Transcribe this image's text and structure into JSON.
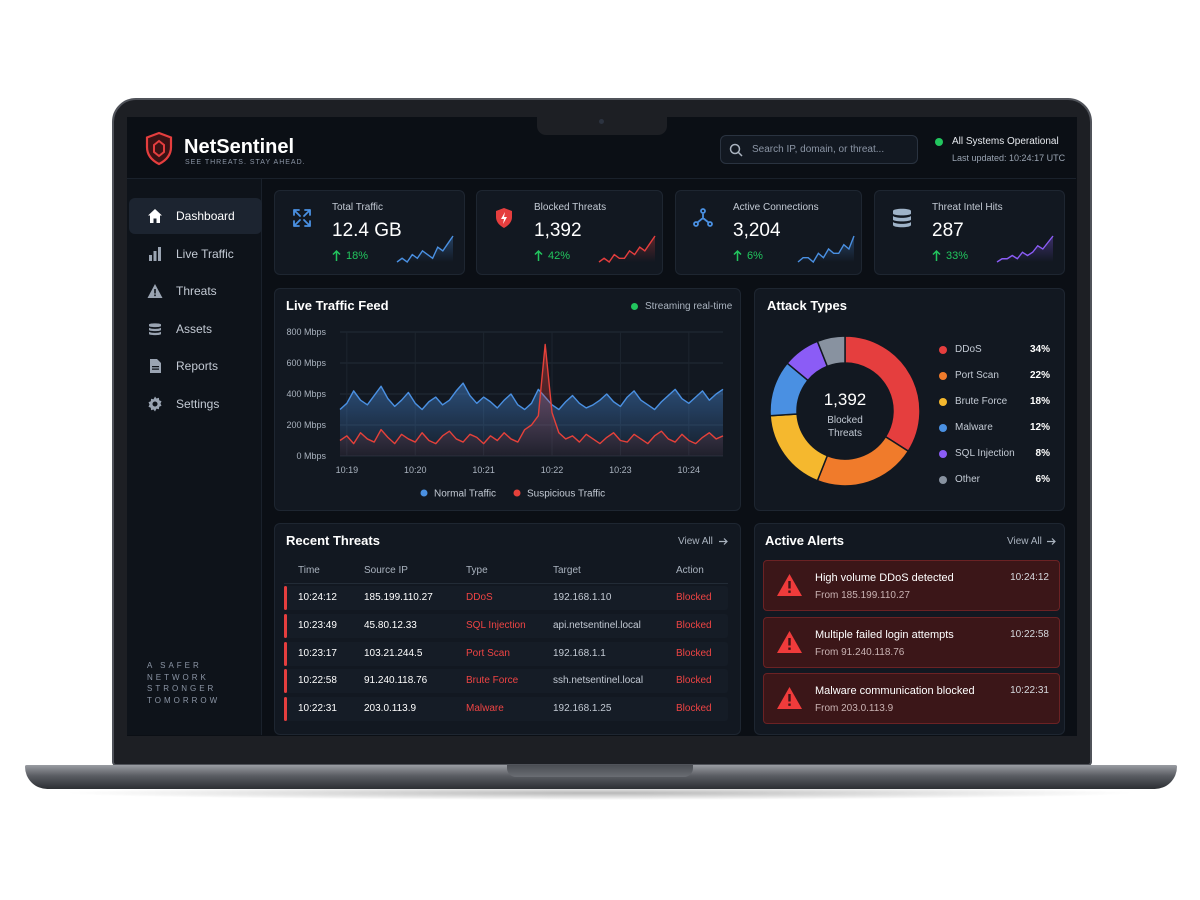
{
  "brand": {
    "name": "NetSentinel",
    "tagline": "SEE THREATS. STAY AHEAD."
  },
  "search_placeholder": "Search IP, domain, or threat...",
  "status": {
    "text": "All Systems Operational",
    "updated": "Last updated: 10:24:17 UTC"
  },
  "nav": [
    "Dashboard",
    "Live Traffic",
    "Threats",
    "Assets",
    "Reports",
    "Settings"
  ],
  "sidebar_footer": [
    "A SAFER",
    "NETWORK",
    "STRONGER",
    "TOMORROW"
  ],
  "kpis": [
    {
      "label": "Total Traffic",
      "value": "12.4 GB",
      "change": "18%",
      "color": "#4a90e2",
      "trend": [
        4,
        5,
        4,
        6,
        5,
        7,
        6,
        5,
        8,
        7,
        9,
        11
      ]
    },
    {
      "label": "Blocked Threats",
      "value": "1,392",
      "change": "42%",
      "color": "#e53e3e",
      "trend": [
        3,
        4,
        3,
        5,
        4,
        4,
        6,
        5,
        7,
        6,
        8,
        10
      ]
    },
    {
      "label": "Active Connections",
      "value": "3,204",
      "change": "6%",
      "color": "#4a90e2",
      "trend": [
        4,
        5,
        5,
        4,
        6,
        5,
        7,
        6,
        6,
        8,
        7,
        10
      ]
    },
    {
      "label": "Threat Intel Hits",
      "value": "287",
      "change": "33%",
      "color": "#8b5cf6",
      "trend": [
        3,
        4,
        4,
        5,
        4,
        6,
        5,
        6,
        8,
        7,
        9,
        11
      ]
    }
  ],
  "chart_data": [
    {
      "type": "line",
      "title": "Live Traffic Feed",
      "annotation": "Streaming real-time",
      "categories": [
        null,
        "10:19",
        null,
        null,
        null,
        null,
        null,
        null,
        null,
        null,
        null,
        "10:20",
        null,
        null,
        null,
        null,
        null,
        null,
        null,
        null,
        null,
        "10:21",
        null,
        null,
        null,
        null,
        null,
        null,
        null,
        null,
        null,
        "10:22",
        null,
        null,
        null,
        null,
        null,
        null,
        null,
        null,
        null,
        "10:23",
        null,
        null,
        null,
        null,
        null,
        null,
        null,
        null,
        null,
        "10:24",
        null,
        null,
        null,
        null,
        null
      ],
      "series": [
        {
          "name": "Normal Traffic",
          "color": "#4a90e2",
          "values": [
            300,
            340,
            420,
            360,
            330,
            390,
            450,
            370,
            320,
            360,
            410,
            340,
            300,
            350,
            380,
            330,
            360,
            420,
            470,
            390,
            340,
            380,
            350,
            310,
            360,
            400,
            330,
            300,
            340,
            430,
            380,
            330,
            300,
            350,
            390,
            340,
            310,
            330,
            360,
            400,
            350,
            320,
            380,
            420,
            360,
            330,
            300,
            350,
            390,
            430,
            370,
            340,
            380,
            420,
            360,
            400,
            430
          ]
        },
        {
          "name": "Suspicious Traffic",
          "color": "#e5413a",
          "values": [
            100,
            130,
            80,
            150,
            110,
            90,
            170,
            120,
            80,
            140,
            110,
            90,
            150,
            100,
            80,
            130,
            160,
            110,
            90,
            140,
            120,
            80,
            130,
            100,
            150,
            110,
            90,
            170,
            200,
            260,
            720,
            280,
            150,
            110,
            130,
            90,
            140,
            110,
            80,
            120,
            150,
            100,
            90,
            140,
            110,
            80,
            130,
            160,
            110,
            90,
            140,
            100,
            80,
            120,
            150,
            110,
            130
          ]
        }
      ],
      "ylim": [
        0,
        800
      ],
      "yticks": [
        {
          "value": 0,
          "label": "0 Mbps"
        },
        {
          "value": 200,
          "label": "200 Mbps"
        },
        {
          "value": 400,
          "label": "400 Mbps"
        },
        {
          "value": 600,
          "label": "600 Mbps"
        },
        {
          "value": 800,
          "label": "800 Mbps"
        }
      ],
      "grid": true
    },
    {
      "type": "donut",
      "title": "Attack Types",
      "center_value": "1,392",
      "center_label": "Blocked Threats",
      "categories": [
        "DDoS",
        "Port Scan",
        "Brute Force",
        "Malware",
        "SQL Injection",
        "Other"
      ],
      "values": [
        34,
        22,
        18,
        12,
        8,
        6
      ],
      "value_labels": [
        "34%",
        "22%",
        "18%",
        "12%",
        "8%",
        "6%"
      ],
      "colors": [
        "#e53e3e",
        "#f07b2b",
        "#f5b82e",
        "#4a90e2",
        "#8b5cf6",
        "#8892a0"
      ]
    }
  ],
  "threats": {
    "title": "Recent Threats",
    "view_all": "View All",
    "columns": [
      "Time",
      "Source IP",
      "Type",
      "Target",
      "Action"
    ],
    "rows": [
      [
        "10:24:12",
        "185.199.110.27",
        "DDoS",
        "192.168.1.10",
        "Blocked"
      ],
      [
        "10:23:49",
        "45.80.12.33",
        "SQL Injection",
        "api.netsentinel.local",
        "Blocked"
      ],
      [
        "10:23:17",
        "103.21.244.5",
        "Port Scan",
        "192.168.1.1",
        "Blocked"
      ],
      [
        "10:22:58",
        "91.240.118.76",
        "Brute Force",
        "ssh.netsentinel.local",
        "Blocked"
      ],
      [
        "10:22:31",
        "203.0.113.9",
        "Malware",
        "192.168.1.25",
        "Blocked"
      ]
    ]
  },
  "alerts": {
    "title": "Active Alerts",
    "view_all": "View All",
    "items": [
      {
        "title": "High volume DDoS detected",
        "source": "From 185.199.110.27",
        "time": "10:24:12"
      },
      {
        "title": "Multiple failed login attempts",
        "source": "From 91.240.118.76",
        "time": "10:22:58"
      },
      {
        "title": "Malware communication blocked",
        "source": "From 203.0.113.9",
        "time": "10:22:31"
      }
    ]
  }
}
